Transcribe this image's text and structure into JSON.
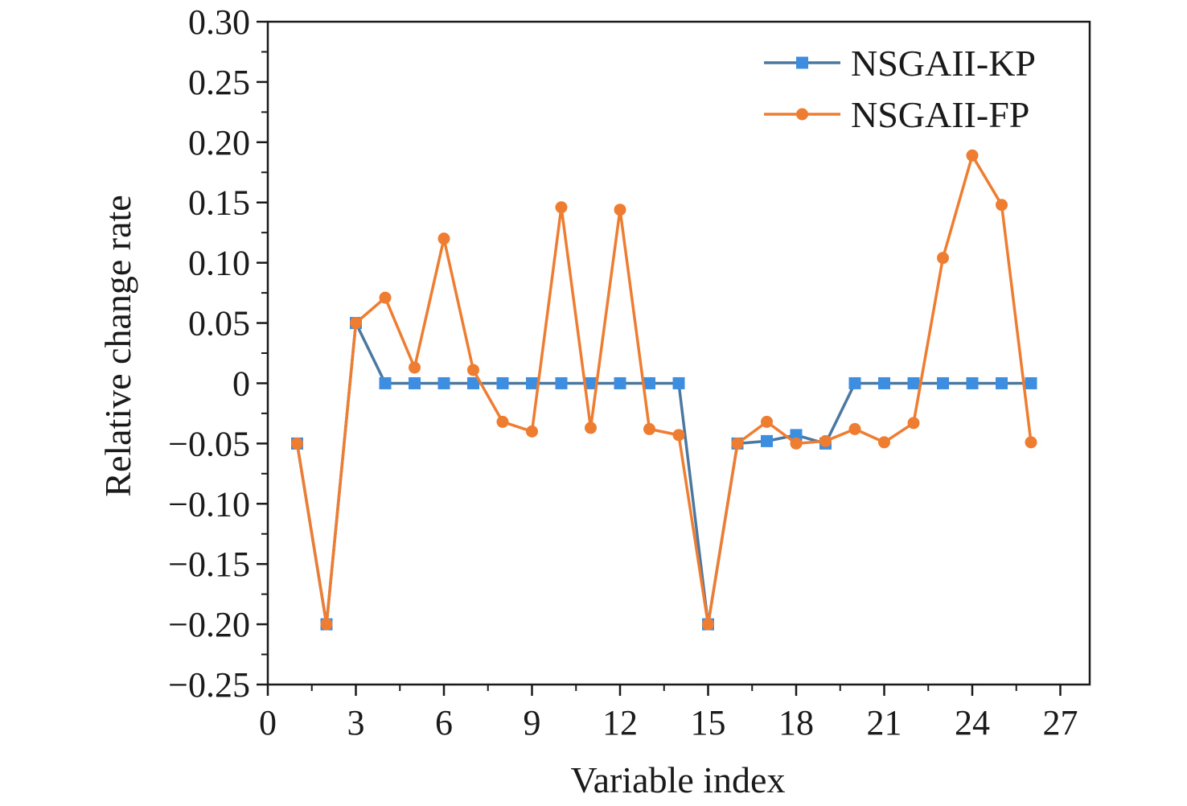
{
  "chart_data": {
    "type": "line",
    "xlabel": "Variable index",
    "ylabel": "Relative change rate",
    "xlim": [
      0,
      28
    ],
    "ylim": [
      -0.25,
      0.3
    ],
    "x_ticks": [
      0,
      3,
      6,
      9,
      12,
      15,
      18,
      21,
      24,
      27
    ],
    "x_tick_labels": [
      "0",
      "3",
      "6",
      "9",
      "12",
      "15",
      "18",
      "21",
      "24",
      "27"
    ],
    "y_ticks": [
      -0.25,
      -0.2,
      -0.15,
      -0.1,
      -0.05,
      0,
      0.05,
      0.1,
      0.15,
      0.2,
      0.25,
      0.3
    ],
    "y_tick_labels": [
      "−0.25",
      "−0.20",
      "−0.15",
      "−0.10",
      "−0.05",
      "0",
      "0.05",
      "0.10",
      "0.15",
      "0.20",
      "0.25",
      "0.30"
    ],
    "grid": false,
    "legend_position": "top-right",
    "x": [
      1,
      2,
      3,
      4,
      5,
      6,
      7,
      8,
      9,
      10,
      11,
      12,
      13,
      14,
      15,
      16,
      17,
      18,
      19,
      20,
      21,
      22,
      23,
      24,
      25,
      26
    ],
    "series": [
      {
        "name": "NSGAII-KP",
        "color": "#3d8ee0",
        "line_color": "#4a78a0",
        "marker": "square",
        "values": [
          -0.05,
          -0.2,
          0.05,
          0,
          0,
          0,
          0,
          0,
          0,
          0,
          0,
          0,
          0,
          0,
          -0.2,
          -0.05,
          -0.048,
          -0.043,
          -0.05,
          0,
          0,
          0,
          0,
          0,
          0,
          0
        ]
      },
      {
        "name": "NSGAII-FP",
        "color": "#ee7d31",
        "line_color": "#ee7d31",
        "marker": "circle",
        "values": [
          -0.05,
          -0.2,
          0.05,
          0.071,
          0.013,
          0.12,
          0.011,
          -0.032,
          -0.04,
          0.146,
          -0.037,
          0.144,
          -0.038,
          -0.043,
          -0.2,
          -0.05,
          -0.032,
          -0.05,
          -0.048,
          -0.038,
          -0.049,
          -0.033,
          0.104,
          0.189,
          0.148,
          -0.049
        ]
      }
    ]
  }
}
